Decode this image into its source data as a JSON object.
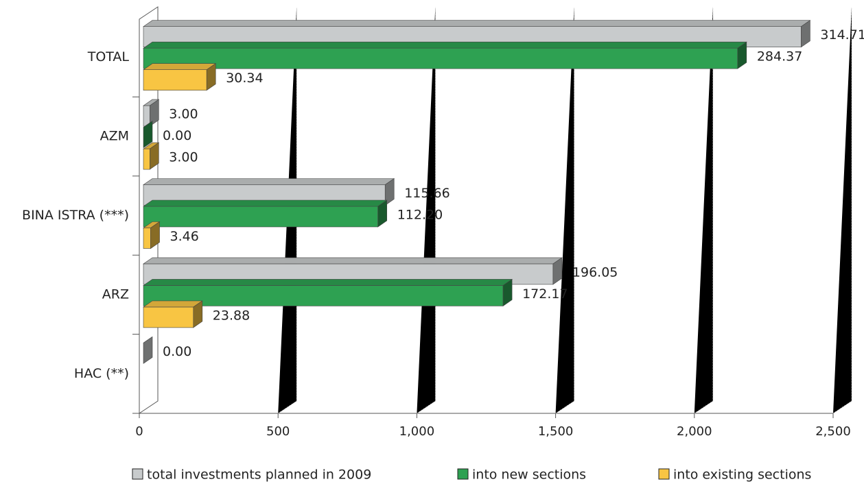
{
  "chart_data": {
    "type": "bar",
    "orientation": "horizontal",
    "categories": [
      "TOTAL",
      "AZM",
      "BINA ISTRA (***)",
      "ARZ",
      "HAC (**)"
    ],
    "series": [
      {
        "name": "total investments planned in 2009",
        "color": "#c8cbcc",
        "values": [
          2370,
          23,
          871,
          1476,
          0
        ],
        "value_labels": [
          "314.71",
          "3.00",
          "115.66",
          "196.05",
          "0.00"
        ]
      },
      {
        "name": "into new sections",
        "color": "#2ea152",
        "values": [
          2141,
          0,
          845,
          1296,
          null
        ],
        "value_labels": [
          "284.37",
          "0.00",
          "112.20",
          "172.17",
          null
        ]
      },
      {
        "name": "into existing sections",
        "color": "#f8c543",
        "values": [
          228,
          23,
          26,
          180,
          null
        ],
        "value_labels": [
          "30.34",
          "3.00",
          "3.46",
          "23.88",
          null
        ]
      }
    ],
    "xlim": [
      0,
      2500
    ],
    "xticks": [
      0,
      500,
      {
        "value": 1000,
        "label": "1,000"
      },
      {
        "value": 1500,
        "label": "1,500"
      },
      {
        "value": 2000,
        "label": "2,000"
      },
      {
        "value": 2500,
        "label": "2,500"
      }
    ],
    "grid": true,
    "legend": "bottom"
  }
}
